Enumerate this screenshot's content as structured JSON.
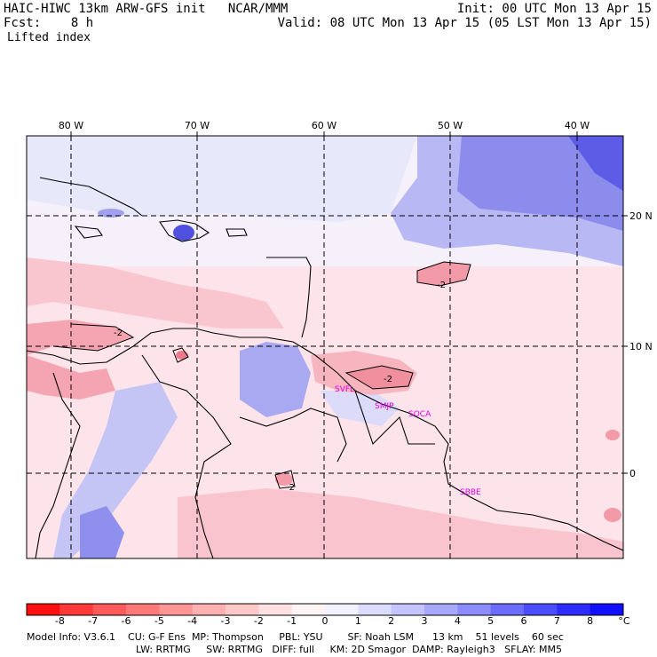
{
  "header": {
    "title": "HAIC-HIWC 13km ARW-GFS init   NCAR/MMM",
    "fcst": "Fcst:    8 h",
    "field": "Lifted index",
    "init": "Init: 00 UTC Mon 13 Apr 15",
    "valid": "Valid: 08 UTC Mon 13 Apr 15 (05 LST Mon 13 Apr 15)"
  },
  "map": {
    "lon_labels": [
      "80 W",
      "70 W",
      "60 W",
      "50 W",
      "40 W"
    ],
    "lat_labels": [
      "20 N",
      "10 N",
      "0"
    ],
    "stations": [
      "SVFL",
      "SMJP",
      "SOCA",
      "SBBE"
    ],
    "contour_labels": [
      "-2",
      "-2",
      "-2",
      "-2"
    ]
  },
  "colorbar": {
    "labels": [
      "-8",
      "-7",
      "-6",
      "-5",
      "-4",
      "-3",
      "-2",
      "-1",
      "0",
      "1",
      "2",
      "3",
      "4",
      "5",
      "6",
      "7",
      "8"
    ],
    "unit": "°C",
    "colors": [
      "#ff1010",
      "#ff3838",
      "#ff5a5a",
      "#ff7878",
      "#ff9494",
      "#ffb0b0",
      "#ffc8c8",
      "#ffe0e0",
      "#fff4f4",
      "#f2f2ff",
      "#dcdcff",
      "#c4c4ff",
      "#a8a8ff",
      "#8c8cff",
      "#6c6cff",
      "#4c4cff",
      "#2c2cff",
      "#1010ff"
    ]
  },
  "model_info": {
    "line1": "Model Info: V3.6.1    CU: G-F Ens  MP: Thompson     PBL: YSU        SF: Noah LSM      13 km    51 levels    60 sec",
    "line2": "LW: RRTMG     SW: RRTMG   DIFF: full     KM: 2D Smagor  DAMP: Rayleigh3   SFLAY: MM5"
  }
}
